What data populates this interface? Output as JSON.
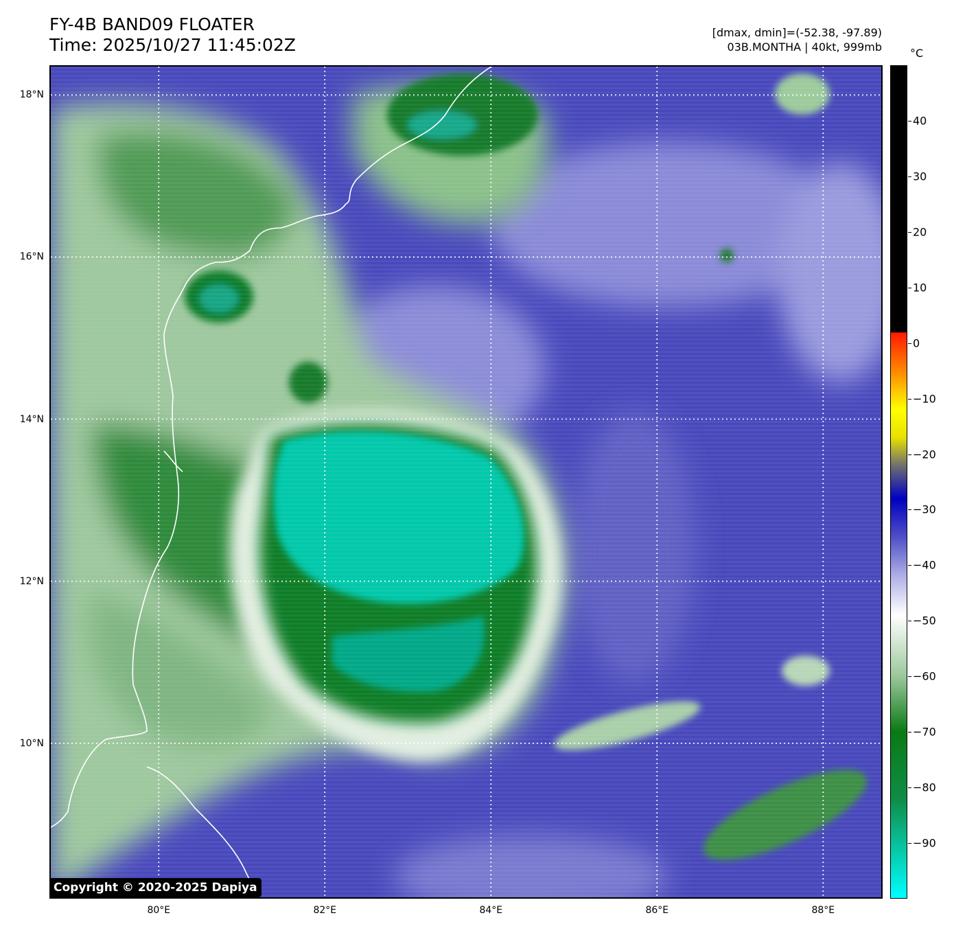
{
  "header": {
    "title_line1": "FY-4B BAND09 FLOATER",
    "title_line2": "Time: 2025/10/27 11:45:02Z",
    "range_text": "[dmax, dmin]=(-52.38, -97.89)",
    "storm_text": "03B.MONTHA | 40kt, 999mb"
  },
  "map": {
    "lon_range": [
      78.7,
      88.7
    ],
    "lat_range": [
      8.1,
      18.35
    ],
    "lat_ticks": [
      {
        "value": 18,
        "label": "18°N"
      },
      {
        "value": 16,
        "label": "16°N"
      },
      {
        "value": 14,
        "label": "14°N"
      },
      {
        "value": 12,
        "label": "12°N"
      },
      {
        "value": 10,
        "label": "10°N"
      }
    ],
    "lon_ticks": [
      {
        "value": 80,
        "label": "80°E"
      },
      {
        "value": 82,
        "label": "82°E"
      },
      {
        "value": 84,
        "label": "84°E"
      },
      {
        "value": 86,
        "label": "86°E"
      },
      {
        "value": 88,
        "label": "88°E"
      }
    ],
    "gridlines": true,
    "colors": {
      "coast": "#ffffff",
      "background": "#3f3fb8",
      "cold_core": "#00d8b8",
      "green": "#0a7a1e"
    }
  },
  "colorbar": {
    "unit": "°C",
    "range": [
      -100,
      50
    ],
    "ticks": [
      {
        "value": 40,
        "label": "40"
      },
      {
        "value": 30,
        "label": "30"
      },
      {
        "value": 20,
        "label": "20"
      },
      {
        "value": 10,
        "label": "10"
      },
      {
        "value": 0,
        "label": "0"
      },
      {
        "value": -10,
        "label": "−10"
      },
      {
        "value": -20,
        "label": "−20"
      },
      {
        "value": -30,
        "label": "−30"
      },
      {
        "value": -40,
        "label": "−40"
      },
      {
        "value": -50,
        "label": "−50"
      },
      {
        "value": -60,
        "label": "−60"
      },
      {
        "value": -70,
        "label": "−70"
      },
      {
        "value": -80,
        "label": "−80"
      },
      {
        "value": -90,
        "label": "−90"
      }
    ]
  },
  "copyright": "Copyright © 2020-2025 Dapiya"
}
